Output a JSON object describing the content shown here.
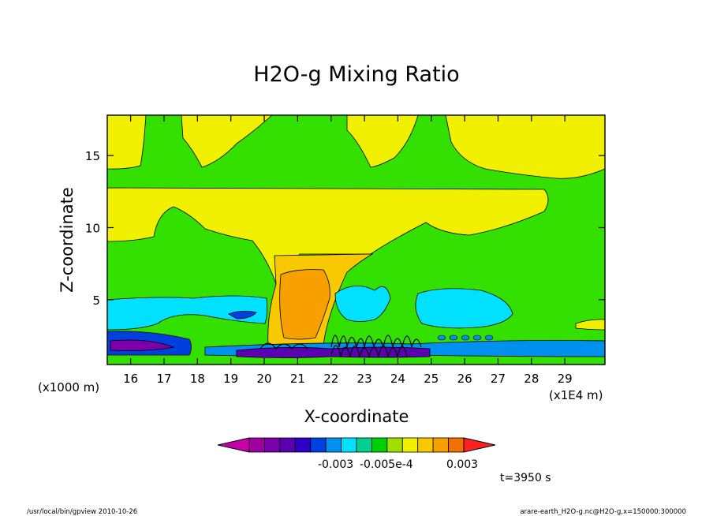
{
  "chart_data": {
    "type": "heatmap",
    "title": "H2O-g Mixing Ratio",
    "xlabel": "X-coordinate",
    "ylabel": "Z-coordinate",
    "x_unit_left": "(x1000 m)",
    "x_unit_right": "(x1E4 m)",
    "xlim": [
      15.3,
      30.2
    ],
    "ylim": [
      0.5,
      17.8
    ],
    "x_ticks": [
      16,
      17,
      18,
      19,
      20,
      21,
      22,
      23,
      24,
      25,
      26,
      27,
      28,
      29
    ],
    "y_ticks": [
      5,
      10,
      15
    ],
    "grid": false,
    "colorbar": {
      "colors": [
        "#c800a8",
        "#9f00a0",
        "#7a00a8",
        "#5a00b0",
        "#2c00c8",
        "#0040e0",
        "#0090f0",
        "#00e0ff",
        "#00d090",
        "#00d000",
        "#a0e000",
        "#f0f000",
        "#f8c800",
        "#f8a000",
        "#f07000",
        "#ff2020"
      ],
      "labels": [
        "-0.003",
        "-0.005e-4",
        "0.003"
      ]
    },
    "time_label": "t=3950 s",
    "footer_left": "/usr/local/bin/gpview  2010-10-26",
    "footer_right": "arare-earth_H2O-g.nc@H2O-g,x=150000:300000"
  }
}
